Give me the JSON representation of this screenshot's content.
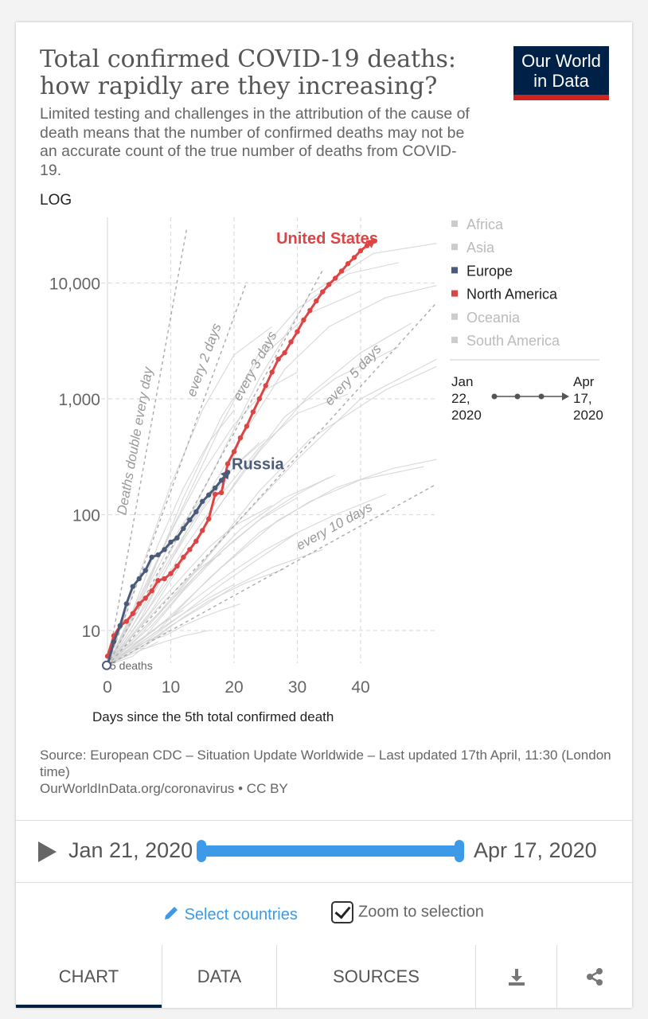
{
  "header": {
    "title": "Total confirmed COVID-19 deaths: how rapidly are they increasing?",
    "subtitle": "Limited testing and challenges in the attribution of the cause of death means that the number of confirmed deaths may not be an accurate count of the true number of deaths from COVID-19.",
    "logo_line1": "Our World",
    "logo_line2": "in Data"
  },
  "chart_data": {
    "type": "line",
    "scale_label": "LOG",
    "xlabel": "Days since the 5th total confirmed death",
    "xlim": [
      0,
      52
    ],
    "ylim": [
      5,
      40000
    ],
    "yscale": "log",
    "x_ticks": [
      0,
      10,
      20,
      30,
      40
    ],
    "y_ticks": [
      {
        "value": 10,
        "label": "10"
      },
      {
        "value": 100,
        "label": "100"
      },
      {
        "value": 1000,
        "label": "1,000"
      },
      {
        "value": 10000,
        "label": "10,000"
      }
    ],
    "grid": true,
    "start_marker_label": "5 deaths",
    "reference_lines": [
      {
        "label": "Deaths double every day",
        "doubling_days": 1
      },
      {
        "label": "every 2 days",
        "doubling_days": 2
      },
      {
        "label": "every 3 days",
        "doubling_days": 3
      },
      {
        "label": "every 5 days",
        "doubling_days": 5
      },
      {
        "label": "every 10 days",
        "doubling_days": 10
      }
    ],
    "legend": {
      "position": "right",
      "entries": [
        {
          "label": "Africa",
          "color": "#cccccc",
          "active": false
        },
        {
          "label": "Asia",
          "color": "#cccccc",
          "active": false
        },
        {
          "label": "Europe",
          "color": "#4c5a7a",
          "active": true
        },
        {
          "label": "North America",
          "color": "#dd4444",
          "active": true
        },
        {
          "label": "Oceania",
          "color": "#cccccc",
          "active": false
        },
        {
          "label": "South America",
          "color": "#cccccc",
          "active": false
        }
      ]
    },
    "mini_timeline": {
      "start": "Jan 22, 2020",
      "end": "Apr 17, 2020"
    },
    "series": [
      {
        "name": "United States",
        "color": "#dd4444",
        "x": [
          0,
          1,
          2,
          3,
          4,
          5,
          6,
          7,
          8,
          9,
          10,
          11,
          12,
          13,
          14,
          15,
          16,
          17,
          18,
          19,
          20,
          21,
          22,
          23,
          24,
          25,
          26,
          27,
          28,
          29,
          30,
          31,
          32,
          33,
          34,
          35,
          36,
          37,
          38,
          39,
          40,
          41,
          42
        ],
        "values": [
          6,
          9,
          11,
          12,
          14,
          17,
          19,
          22,
          27,
          28,
          31,
          36,
          43,
          50,
          59,
          73,
          92,
          150,
          155,
          275,
          350,
          460,
          580,
          770,
          1000,
          1300,
          1700,
          2200,
          2500,
          3100,
          3800,
          4800,
          5800,
          7000,
          8400,
          9700,
          11000,
          12700,
          14700,
          16600,
          19000,
          21000,
          23000
        ]
      },
      {
        "name": "Russia",
        "color": "#4c5a7a",
        "x": [
          0,
          1,
          2,
          3,
          4,
          5,
          6,
          7,
          8,
          9,
          10,
          11,
          12,
          13,
          14,
          15,
          16,
          17,
          18,
          19
        ],
        "values": [
          5,
          8,
          11,
          17,
          24,
          28,
          33,
          43,
          45,
          50,
          58,
          63,
          76,
          90,
          106,
          130,
          148,
          170,
          198,
          232
        ]
      }
    ],
    "background_series": [
      {
        "x": [
          0,
          8,
          16,
          24,
          32,
          42,
          52
        ],
        "values": [
          5,
          30,
          200,
          1500,
          8000,
          18000,
          22000
        ]
      },
      {
        "x": [
          0,
          6,
          12,
          18,
          24,
          30,
          38,
          46
        ],
        "values": [
          5,
          25,
          120,
          600,
          2500,
          6000,
          12000,
          15000
        ]
      },
      {
        "x": [
          0,
          7,
          14,
          21,
          28,
          35,
          44,
          52
        ],
        "values": [
          5,
          20,
          100,
          450,
          1800,
          4200,
          7500,
          9500
        ]
      },
      {
        "x": [
          0,
          8,
          16,
          24,
          32,
          40,
          48
        ],
        "values": [
          5,
          20,
          90,
          350,
          1100,
          2500,
          4500
        ]
      },
      {
        "x": [
          0,
          10,
          20,
          30,
          40,
          52
        ],
        "values": [
          5,
          18,
          80,
          300,
          1000,
          2200
        ]
      },
      {
        "x": [
          0,
          8,
          16,
          24,
          32,
          44,
          52
        ],
        "values": [
          5,
          14,
          45,
          160,
          450,
          1200,
          1900
        ]
      },
      {
        "x": [
          0,
          6,
          12,
          18,
          24,
          32,
          40
        ],
        "values": [
          5,
          22,
          140,
          700,
          2200,
          5500,
          8500
        ]
      },
      {
        "x": [
          0,
          5,
          10,
          15,
          20,
          26
        ],
        "values": [
          5,
          30,
          180,
          800,
          2400,
          4200
        ]
      },
      {
        "x": [
          0,
          7,
          14,
          21,
          28,
          36,
          46
        ],
        "values": [
          5,
          15,
          60,
          220,
          700,
          1500,
          2800
        ]
      },
      {
        "x": [
          0,
          9,
          18,
          27,
          36,
          45,
          52
        ],
        "values": [
          5,
          12,
          35,
          90,
          170,
          250,
          300
        ]
      },
      {
        "x": [
          0,
          6,
          12,
          18,
          24,
          30,
          38
        ],
        "values": [
          5,
          14,
          50,
          150,
          380,
          750,
          1100
        ]
      },
      {
        "x": [
          0,
          8,
          16,
          24,
          32,
          40,
          50
        ],
        "values": [
          5,
          10,
          28,
          70,
          130,
          200,
          260
        ]
      },
      {
        "x": [
          0,
          5,
          10,
          15,
          20,
          25,
          30
        ],
        "values": [
          5,
          18,
          70,
          230,
          600,
          1200,
          1700
        ]
      },
      {
        "x": [
          0,
          7,
          14,
          21,
          28,
          36
        ],
        "values": [
          5,
          11,
          30,
          75,
          140,
          220
        ]
      },
      {
        "x": [
          0,
          6,
          12,
          18,
          24,
          30
        ],
        "values": [
          5,
          9,
          22,
          48,
          90,
          140
        ]
      },
      {
        "x": [
          0,
          5,
          10,
          15,
          20,
          25
        ],
        "values": [
          5,
          12,
          40,
          110,
          260,
          450
        ]
      },
      {
        "x": [
          0,
          4,
          8,
          12,
          16,
          20
        ],
        "values": [
          5,
          15,
          55,
          170,
          420,
          800
        ]
      },
      {
        "x": [
          0,
          6,
          12,
          18,
          24,
          30,
          36,
          44
        ],
        "values": [
          5,
          8,
          14,
          25,
          42,
          70,
          100,
          150
        ]
      },
      {
        "x": [
          0,
          5,
          10,
          15,
          20,
          25,
          30
        ],
        "values": [
          5,
          8,
          13,
          21,
          33,
          50,
          70
        ]
      },
      {
        "x": [
          0,
          4,
          8,
          12,
          16,
          20,
          26
        ],
        "values": [
          5,
          9,
          17,
          30,
          52,
          80,
          120
        ]
      },
      {
        "x": [
          0,
          5,
          10,
          15,
          20,
          26,
          34
        ],
        "values": [
          5,
          7,
          11,
          16,
          24,
          35,
          50
        ]
      },
      {
        "x": [
          0,
          4,
          8,
          12,
          16,
          22,
          28
        ],
        "values": [
          5,
          6,
          9,
          13,
          18,
          26,
          34
        ]
      },
      {
        "x": [
          0,
          3,
          6,
          9,
          12,
          15,
          18
        ],
        "values": [
          5,
          8,
          12,
          18,
          26,
          36,
          46
        ]
      },
      {
        "x": [
          0,
          4,
          8,
          12,
          16,
          20
        ],
        "values": [
          5,
          7,
          10,
          14,
          19,
          25
        ]
      },
      {
        "x": [
          0,
          3,
          6,
          9,
          12
        ],
        "values": [
          5,
          7,
          9,
          12,
          15
        ]
      },
      {
        "x": [
          0,
          3,
          6,
          9,
          12,
          15
        ],
        "values": [
          5,
          10,
          22,
          45,
          85,
          140
        ]
      },
      {
        "x": [
          0,
          2,
          4,
          6,
          8,
          10
        ],
        "values": [
          5,
          6,
          7,
          8,
          9,
          10
        ]
      },
      {
        "x": [
          0,
          3,
          6,
          9,
          12,
          16
        ],
        "values": [
          5,
          6,
          7,
          8,
          9,
          10
        ]
      },
      {
        "x": [
          0,
          4,
          8,
          12,
          16,
          20,
          24
        ],
        "values": [
          5,
          11,
          28,
          65,
          140,
          260,
          420
        ]
      },
      {
        "x": [
          0,
          5,
          10,
          15,
          20,
          25,
          30,
          35
        ],
        "values": [
          5,
          9,
          18,
          34,
          60,
          100,
          150,
          210
        ]
      },
      {
        "x": [
          0,
          2,
          4,
          6,
          8
        ],
        "values": [
          5,
          6,
          7,
          7,
          8
        ]
      },
      {
        "x": [
          0,
          3,
          6,
          9,
          12,
          15,
          18,
          21
        ],
        "values": [
          5,
          6,
          8,
          9,
          11,
          13,
          15,
          17
        ]
      }
    ]
  },
  "footer": {
    "source": "Source: European CDC – Situation Update Worldwide – Last updated 17th April, 11:30 (London time)",
    "url": "OurWorldInData.org/coronavirus • CC BY"
  },
  "timeline": {
    "start": "Jan 21, 2020",
    "end": "Apr 17, 2020"
  },
  "controls": {
    "select_countries": "Select countries",
    "zoom": "Zoom to selection",
    "zoom_checked": true
  },
  "tabs": [
    {
      "label": "CHART",
      "active": true
    },
    {
      "label": "DATA",
      "active": false
    },
    {
      "label": "SOURCES",
      "active": false
    },
    {
      "label": "download-icon",
      "active": false
    },
    {
      "label": "share-icon",
      "active": false
    }
  ]
}
